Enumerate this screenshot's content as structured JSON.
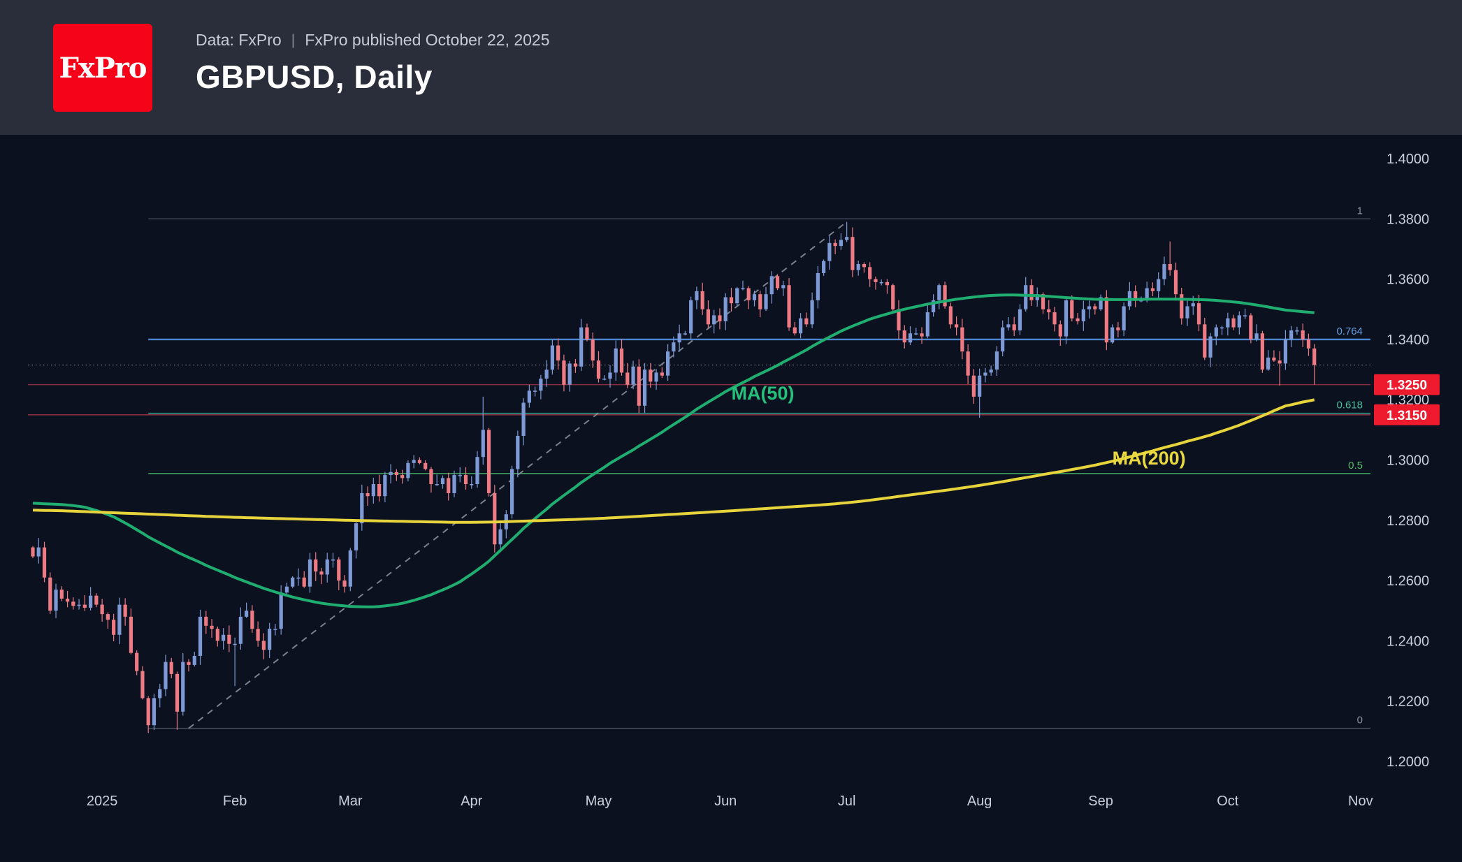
{
  "header": {
    "logo_text": "FxPro",
    "data_source": "Data: FxPro",
    "separator": "|",
    "published": "FxPro published October 22, 2025",
    "title": "GBPUSD, Daily"
  },
  "colors": {
    "background": "#0b111f",
    "header_bg": "#2a2e3a",
    "logo_red": "#f50419",
    "candle_up": "#7d99d6",
    "candle_down": "#ee7b84",
    "ma50": "#1fae70",
    "ma200": "#e7d33c",
    "trendline": "#878d99",
    "axis_text": "#cbd0da",
    "support_line": "rgba(235,75,88,0.55)",
    "badge_bg": "#ee1b2e",
    "badge_text": "#ffffff",
    "last_price_line": "#9ba1ad"
  },
  "chart_data": {
    "type": "candlestick",
    "symbol": "GBPUSD",
    "timeframe": "Daily",
    "y_axis": {
      "labels": [
        "1.4000",
        "1.3800",
        "1.3600",
        "1.3400",
        "1.3200",
        "1.3000",
        "1.2800",
        "1.2600",
        "1.2400",
        "1.2200",
        "1.2000"
      ]
    },
    "x_axis": {
      "ticks": [
        [
          "2025-01-01",
          "2025"
        ],
        [
          "2025-02-01",
          "Feb"
        ],
        [
          "2025-03-01",
          "Mar"
        ],
        [
          "2025-04-01",
          "Apr"
        ],
        [
          "2025-05-01",
          "May"
        ],
        [
          "2025-06-01",
          "Jun"
        ],
        [
          "2025-07-01",
          "Jul"
        ],
        [
          "2025-08-01",
          "Aug"
        ],
        [
          "2025-09-01",
          "Sep"
        ],
        [
          "2025-10-01",
          "Oct"
        ],
        [
          "2025-11-01",
          "Nov"
        ]
      ]
    },
    "closes": {
      "2024-12": [
        [
          16,
          1.268
        ],
        [
          17,
          1.271
        ],
        [
          18,
          1.261
        ],
        [
          19,
          1.25
        ],
        [
          20,
          1.257
        ],
        [
          23,
          1.254
        ],
        [
          24,
          1.253
        ],
        [
          26,
          1.252
        ],
        [
          27,
          1.251
        ],
        [
          30,
          1.255
        ],
        [
          31,
          1.252
        ]
      ],
      "2025-01": [
        [
          2,
          1.247
        ],
        [
          3,
          1.242
        ],
        [
          6,
          1.252
        ],
        [
          7,
          1.248
        ],
        [
          8,
          1.236
        ],
        [
          9,
          1.23
        ],
        [
          10,
          1.221
        ],
        [
          13,
          1.212
        ],
        [
          14,
          1.221
        ],
        [
          15,
          1.224
        ],
        [
          16,
          1.233
        ],
        [
          17,
          1.229
        ],
        [
          20,
          1.2165
        ],
        [
          21,
          1.233
        ],
        [
          22,
          1.232
        ],
        [
          23,
          1.235
        ],
        [
          24,
          1.248
        ],
        [
          27,
          1.245
        ],
        [
          28,
          1.244
        ],
        [
          29,
          1.24
        ],
        [
          30,
          1.242
        ],
        [
          31,
          1.239
        ]
      ],
      "2025-02": [
        [
          3,
          1.239
        ],
        [
          4,
          1.248
        ],
        [
          5,
          1.25
        ],
        [
          6,
          1.244
        ],
        [
          7,
          1.24
        ],
        [
          10,
          1.237
        ],
        [
          11,
          1.244
        ],
        [
          12,
          1.244
        ],
        [
          13,
          1.256
        ],
        [
          14,
          1.258
        ],
        [
          17,
          1.261
        ],
        [
          18,
          1.261
        ],
        [
          19,
          1.258
        ],
        [
          20,
          1.267
        ],
        [
          21,
          1.263
        ],
        [
          24,
          1.262
        ],
        [
          25,
          1.267
        ],
        [
          26,
          1.267
        ],
        [
          27,
          1.26
        ],
        [
          28,
          1.258
        ]
      ],
      "2025-03": [
        [
          3,
          1.27
        ],
        [
          4,
          1.279
        ],
        [
          5,
          1.289
        ],
        [
          6,
          1.288
        ],
        [
          7,
          1.292
        ],
        [
          10,
          1.288
        ],
        [
          11,
          1.295
        ],
        [
          12,
          1.296
        ],
        [
          13,
          1.295
        ],
        [
          14,
          1.294
        ],
        [
          17,
          1.299
        ],
        [
          18,
          1.3
        ],
        [
          19,
          1.299
        ],
        [
          20,
          1.297
        ],
        [
          21,
          1.292
        ],
        [
          24,
          1.292
        ],
        [
          25,
          1.294
        ],
        [
          26,
          1.289
        ],
        [
          27,
          1.295
        ],
        [
          28,
          1.295
        ],
        [
          31,
          1.292
        ]
      ],
      "2025-04": [
        [
          1,
          1.292
        ],
        [
          2,
          1.301
        ],
        [
          3,
          1.31
        ],
        [
          4,
          1.289
        ],
        [
          7,
          1.272
        ],
        [
          8,
          1.277
        ],
        [
          9,
          1.282
        ],
        [
          10,
          1.297
        ],
        [
          11,
          1.308
        ],
        [
          14,
          1.319
        ],
        [
          15,
          1.323
        ],
        [
          16,
          1.323
        ],
        [
          17,
          1.327
        ],
        [
          21,
          1.338
        ],
        [
          22,
          1.333
        ],
        [
          23,
          1.325
        ],
        [
          24,
          1.332
        ],
        [
          25,
          1.331
        ],
        [
          28,
          1.344
        ],
        [
          29,
          1.34
        ],
        [
          30,
          1.333
        ]
      ],
      "2025-05": [
        [
          1,
          1.327
        ],
        [
          2,
          1.327
        ],
        [
          5,
          1.329
        ],
        [
          6,
          1.337
        ],
        [
          7,
          1.329
        ],
        [
          8,
          1.325
        ],
        [
          9,
          1.331
        ],
        [
          12,
          1.318
        ],
        [
          13,
          1.33
        ],
        [
          14,
          1.326
        ],
        [
          15,
          1.329
        ],
        [
          16,
          1.328
        ],
        [
          19,
          1.336
        ],
        [
          20,
          1.339
        ],
        [
          21,
          1.342
        ],
        [
          22,
          1.342
        ],
        [
          23,
          1.353
        ],
        [
          26,
          1.356
        ],
        [
          27,
          1.35
        ],
        [
          28,
          1.345
        ],
        [
          29,
          1.348
        ],
        [
          30,
          1.346
        ]
      ],
      "2025-06": [
        [
          2,
          1.354
        ],
        [
          3,
          1.352
        ],
        [
          4,
          1.357
        ],
        [
          5,
          1.357
        ],
        [
          6,
          1.353
        ],
        [
          9,
          1.355
        ],
        [
          10,
          1.35
        ],
        [
          11,
          1.355
        ],
        [
          12,
          1.361
        ],
        [
          13,
          1.357
        ],
        [
          16,
          1.358
        ],
        [
          17,
          1.344
        ],
        [
          18,
          1.342
        ],
        [
          19,
          1.347
        ],
        [
          20,
          1.345
        ],
        [
          23,
          1.353
        ],
        [
          24,
          1.362
        ],
        [
          25,
          1.366
        ],
        [
          26,
          1.372
        ],
        [
          27,
          1.371
        ],
        [
          30,
          1.373
        ]
      ],
      "2025-07": [
        [
          1,
          1.374
        ],
        [
          2,
          1.363
        ],
        [
          3,
          1.365
        ],
        [
          4,
          1.364
        ],
        [
          7,
          1.36
        ],
        [
          8,
          1.359
        ],
        [
          9,
          1.359
        ],
        [
          10,
          1.358
        ],
        [
          11,
          1.35
        ],
        [
          14,
          1.343
        ],
        [
          15,
          1.339
        ],
        [
          16,
          1.342
        ],
        [
          17,
          1.342
        ],
        [
          18,
          1.341
        ],
        [
          21,
          1.349
        ],
        [
          22,
          1.353
        ],
        [
          23,
          1.358
        ],
        [
          24,
          1.351
        ],
        [
          25,
          1.345
        ],
        [
          28,
          1.344
        ],
        [
          29,
          1.336
        ],
        [
          30,
          1.328
        ],
        [
          31,
          1.321
        ]
      ],
      "2025-08": [
        [
          1,
          1.328
        ],
        [
          4,
          1.329
        ],
        [
          5,
          1.33
        ],
        [
          6,
          1.336
        ],
        [
          7,
          1.344
        ],
        [
          8,
          1.345
        ],
        [
          11,
          1.343
        ],
        [
          12,
          1.35
        ],
        [
          13,
          1.358
        ],
        [
          14,
          1.353
        ],
        [
          15,
          1.355
        ],
        [
          18,
          1.35
        ],
        [
          19,
          1.349
        ],
        [
          20,
          1.345
        ],
        [
          21,
          1.341
        ],
        [
          22,
          1.353
        ],
        [
          25,
          1.347
        ],
        [
          26,
          1.346
        ],
        [
          27,
          1.35
        ],
        [
          28,
          1.351
        ],
        [
          29,
          1.35
        ]
      ],
      "2025-09": [
        [
          1,
          1.354
        ],
        [
          2,
          1.339
        ],
        [
          3,
          1.344
        ],
        [
          4,
          1.343
        ],
        [
          5,
          1.351
        ],
        [
          8,
          1.356
        ],
        [
          9,
          1.353
        ],
        [
          10,
          1.353
        ],
        [
          11,
          1.357
        ],
        [
          12,
          1.356
        ],
        [
          15,
          1.36
        ],
        [
          16,
          1.365
        ],
        [
          17,
          1.363
        ],
        [
          18,
          1.355
        ],
        [
          19,
          1.347
        ],
        [
          22,
          1.351
        ],
        [
          23,
          1.352
        ],
        [
          24,
          1.345
        ],
        [
          25,
          1.334
        ],
        [
          26,
          1.341
        ],
        [
          29,
          1.344
        ],
        [
          30,
          1.344
        ]
      ],
      "2025-10": [
        [
          1,
          1.347
        ],
        [
          2,
          1.344
        ],
        [
          3,
          1.348
        ],
        [
          6,
          1.348
        ],
        [
          7,
          1.34
        ],
        [
          8,
          1.342
        ],
        [
          9,
          1.33
        ],
        [
          10,
          1.334
        ],
        [
          13,
          1.333
        ],
        [
          14,
          1.332
        ],
        [
          15,
          1.34
        ],
        [
          16,
          1.343
        ],
        [
          17,
          1.343
        ],
        [
          20,
          1.34
        ],
        [
          21,
          1.337
        ],
        [
          22,
          1.3315
        ]
      ]
    },
    "spikes": [
      [
        "2025-01-13",
        "l",
        1.21
      ],
      [
        "2025-01-20",
        "l",
        1.2105
      ],
      [
        "2025-02-03",
        "l",
        1.225
      ],
      [
        "2025-04-03",
        "h",
        1.321
      ],
      [
        "2025-04-07",
        "l",
        1.271
      ],
      [
        "2025-07-01",
        "h",
        1.379
      ],
      [
        "2025-08-01",
        "l",
        1.314
      ],
      [
        "2025-09-17",
        "h",
        1.3725
      ],
      [
        "2025-10-14",
        "l",
        1.3247
      ],
      [
        "2025-10-22",
        "l",
        1.325
      ]
    ],
    "ma50": {
      "label": "MA(50)",
      "color": "#1fae70",
      "points": [
        [
          "2024-12-16",
          1.286
        ],
        [
          "2025-01-01",
          1.284
        ],
        [
          "2025-01-15",
          1.272
        ],
        [
          "2025-02-01",
          1.2615
        ],
        [
          "2025-02-15",
          1.2545
        ],
        [
          "2025-03-01",
          1.251
        ],
        [
          "2025-03-15",
          1.2515
        ],
        [
          "2025-04-01",
          1.261
        ],
        [
          "2025-04-15",
          1.28
        ],
        [
          "2025-05-01",
          1.2965
        ],
        [
          "2025-05-15",
          1.3075
        ],
        [
          "2025-06-01",
          1.323
        ],
        [
          "2025-06-15",
          1.332
        ],
        [
          "2025-07-01",
          1.3445
        ],
        [
          "2025-07-15",
          1.3505
        ],
        [
          "2025-08-01",
          1.3545
        ],
        [
          "2025-08-11",
          1.355
        ],
        [
          "2025-09-01",
          1.353
        ],
        [
          "2025-09-15",
          1.3535
        ],
        [
          "2025-10-01",
          1.353
        ],
        [
          "2025-10-10",
          1.351
        ],
        [
          "2025-10-22",
          1.348
        ]
      ]
    },
    "ma200": {
      "label": "MA(200)",
      "color": "#e7d33c",
      "points": [
        [
          "2024-12-16",
          1.2835
        ],
        [
          "2025-02-01",
          1.281
        ],
        [
          "2025-03-01",
          1.28
        ],
        [
          "2025-04-01",
          1.2792
        ],
        [
          "2025-05-01",
          1.2805
        ],
        [
          "2025-06-01",
          1.283
        ],
        [
          "2025-07-01",
          1.2857
        ],
        [
          "2025-08-01",
          1.2913
        ],
        [
          "2025-09-01",
          1.2987
        ],
        [
          "2025-10-01",
          1.3098
        ],
        [
          "2025-10-22",
          1.322
        ]
      ]
    },
    "fibonacci": {
      "start_date": "2025-01-13",
      "levels": [
        {
          "ratio": "1",
          "price": 1.38,
          "line_color": "#4a5160",
          "label_color": "#8b919e",
          "width": 1.4
        },
        {
          "ratio": "0.764",
          "price": 1.34,
          "line_color": "#4c86cf",
          "label_color": "#64a0e0",
          "width": 2.4
        },
        {
          "ratio": "0.618",
          "price": 1.3155,
          "line_color": "#37a08d",
          "label_color": "#49bf9a",
          "width": 1.6
        },
        {
          "ratio": "0.5",
          "price": 1.2955,
          "line_color": "#3da35f",
          "label_color": "#55bb6b",
          "width": 1.6
        },
        {
          "ratio": "0",
          "price": 1.211,
          "line_color": "#4a5160",
          "label_color": "#8b919e",
          "width": 1.4
        }
      ]
    },
    "support_lines": [
      {
        "price": 1.325,
        "label": "1.3250"
      },
      {
        "price": 1.315,
        "label": "1.3150"
      }
    ],
    "last_price_line": {
      "price": 1.3315
    },
    "trendline": {
      "from": {
        "date": "2025-01-22",
        "price": 1.211
      },
      "to": {
        "date": "2025-07-01",
        "price": 1.379
      }
    },
    "annotations": [
      {
        "text": "MA(50)",
        "date": "2025-06-03",
        "price": 1.32,
        "color": "#25c07c"
      },
      {
        "text": "MA(200)",
        "date": "2025-09-03",
        "price": 1.2985,
        "color": "#e9d83f"
      }
    ]
  }
}
